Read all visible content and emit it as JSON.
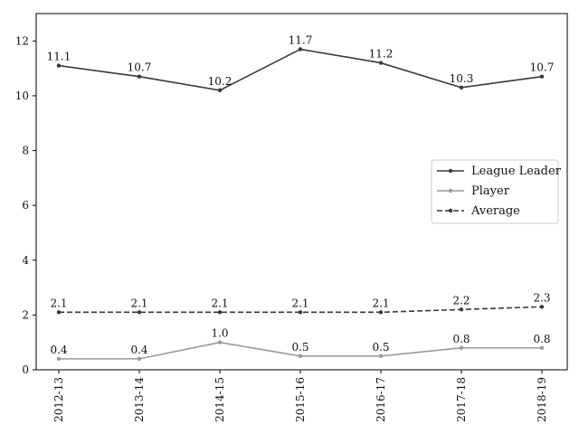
{
  "chart_data": {
    "type": "line",
    "categories": [
      "2012-13",
      "2013-14",
      "2014-15",
      "2015-16",
      "2016-17",
      "2017-18",
      "2018-19"
    ],
    "ylim": [
      0,
      13
    ],
    "yticks": [
      0,
      2,
      4,
      6,
      8,
      10,
      12
    ],
    "grid": false,
    "legend_position": "right",
    "series": [
      {
        "name": "League Leader",
        "values": [
          11.1,
          10.7,
          10.2,
          11.7,
          11.2,
          10.3,
          10.7
        ],
        "labels": [
          "11.1",
          "10.7",
          "10.2",
          "11.7",
          "11.2",
          "10.3",
          "10.7"
        ],
        "color": "#3a3a3a",
        "dash": "solid"
      },
      {
        "name": "Player",
        "values": [
          0.4,
          0.4,
          1.0,
          0.5,
          0.5,
          0.8,
          0.8
        ],
        "labels": [
          "0.4",
          "0.4",
          "1.0",
          "0.5",
          "0.5",
          "0.8",
          "0.8"
        ],
        "color": "#9a9a9a",
        "dash": "solid"
      },
      {
        "name": "Average",
        "values": [
          2.1,
          2.1,
          2.1,
          2.1,
          2.1,
          2.2,
          2.3
        ],
        "labels": [
          "2.1",
          "2.1",
          "2.1",
          "2.1",
          "2.1",
          "2.2",
          "2.3"
        ],
        "color": "#3a3a3a",
        "dash": "dashed"
      }
    ]
  }
}
